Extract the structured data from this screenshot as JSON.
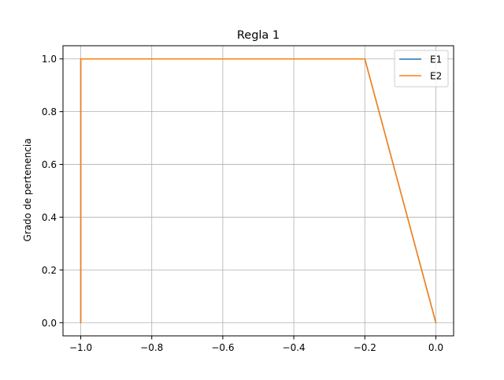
{
  "chart_data": {
    "type": "line",
    "title": "Regla 1",
    "xlabel": "",
    "ylabel": "Grado de pertenencia",
    "xlim": [
      -1.05,
      0.05
    ],
    "ylim": [
      -0.05,
      1.05
    ],
    "xticks": [
      -1.0,
      -0.8,
      -0.6,
      -0.4,
      -0.2,
      0.0
    ],
    "xtick_labels": [
      "−1.0",
      "−0.8",
      "−0.6",
      "−0.4",
      "−0.2",
      "0.0"
    ],
    "yticks": [
      0.0,
      0.2,
      0.4,
      0.6,
      0.8,
      1.0
    ],
    "ytick_labels": [
      "0.0",
      "0.2",
      "0.4",
      "0.6",
      "0.8",
      "1.0"
    ],
    "grid": true,
    "legend_position": "top-right",
    "series": [
      {
        "name": "E1",
        "color": "#1f77b4",
        "x": [
          -1.0,
          -1.0,
          -0.2,
          0.0
        ],
        "y": [
          0.0,
          1.0,
          1.0,
          0.0
        ]
      },
      {
        "name": "E2",
        "color": "#ff7f0e",
        "x": [
          -1.0,
          -1.0,
          -0.2,
          0.0
        ],
        "y": [
          0.0,
          1.0,
          1.0,
          0.0
        ]
      }
    ]
  }
}
